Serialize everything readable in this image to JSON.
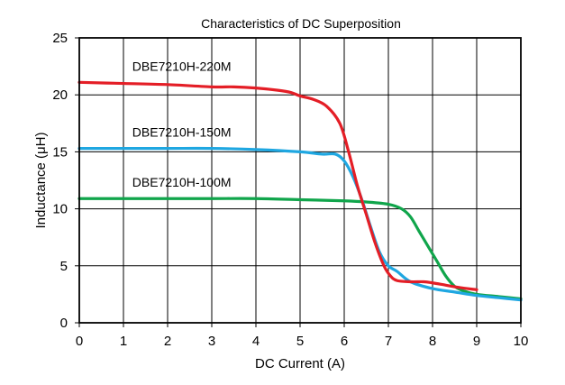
{
  "chart_data": {
    "type": "line",
    "title": "Characteristics of DC Superposition",
    "xlabel": "DC Current (A)",
    "ylabel": "Inductance (μH)",
    "xlim": [
      0,
      10
    ],
    "ylim": [
      0,
      25
    ],
    "xticks": [
      0,
      1,
      2,
      3,
      4,
      5,
      6,
      7,
      8,
      9,
      10
    ],
    "yticks": [
      0,
      5,
      10,
      15,
      20,
      25
    ],
    "grid": true,
    "series": [
      {
        "name": "DBE7210H-220M",
        "color": "#e41e26",
        "x": [
          0,
          1,
          2,
          3,
          3.5,
          4,
          4.5,
          4.8,
          5,
          5.3,
          5.6,
          5.9,
          6.1,
          6.3,
          6.5,
          6.7,
          6.9,
          7.05,
          7.2,
          7.5,
          7.8,
          8.0,
          8.3,
          8.6,
          9.0
        ],
        "y": [
          21.1,
          21.0,
          20.9,
          20.7,
          20.7,
          20.6,
          20.4,
          20.2,
          19.9,
          19.6,
          19.0,
          17.5,
          15.0,
          12.0,
          9.5,
          7.0,
          5.0,
          4.1,
          3.7,
          3.6,
          3.6,
          3.5,
          3.3,
          3.1,
          2.9
        ]
      },
      {
        "name": "DBE7210H-150M",
        "color": "#1fa7e1",
        "x": [
          0,
          1,
          2,
          3,
          4,
          5,
          5.5,
          5.8,
          6.0,
          6.2,
          6.4,
          6.6,
          6.8,
          7.0,
          7.2,
          7.5,
          8.0,
          8.5,
          9.0,
          9.5,
          10.0
        ],
        "y": [
          15.3,
          15.3,
          15.3,
          15.3,
          15.2,
          15.0,
          14.8,
          14.8,
          14.2,
          12.8,
          10.8,
          8.4,
          6.2,
          5.0,
          4.5,
          3.6,
          3.0,
          2.7,
          2.4,
          2.2,
          2.0
        ]
      },
      {
        "name": "DBE7210H-100M",
        "color": "#10a54b",
        "x": [
          0,
          1,
          2,
          3,
          4,
          5,
          6,
          6.5,
          7.0,
          7.3,
          7.5,
          7.7,
          7.9,
          8.1,
          8.3,
          8.5,
          8.7,
          9.0,
          9.5,
          10.0
        ],
        "y": [
          10.9,
          10.9,
          10.9,
          10.9,
          10.9,
          10.8,
          10.7,
          10.6,
          10.4,
          10.0,
          9.3,
          8.0,
          6.7,
          5.4,
          4.1,
          3.2,
          2.8,
          2.5,
          2.3,
          2.1
        ]
      }
    ]
  }
}
